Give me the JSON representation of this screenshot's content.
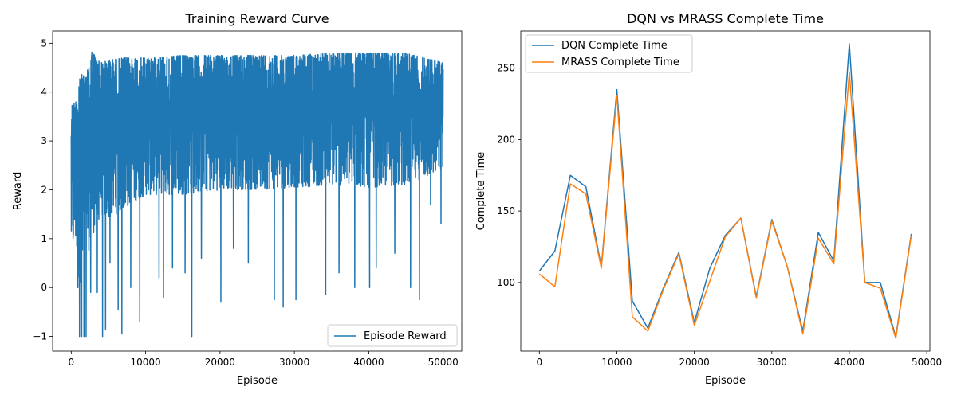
{
  "chart_data": [
    {
      "type": "line",
      "title": "Training Reward Curve",
      "xlabel": "Episode",
      "ylabel": "Reward",
      "xlim": [
        -2500,
        52500
      ],
      "ylim": [
        -1.3,
        5.25
      ],
      "xticks": [
        0,
        10000,
        20000,
        30000,
        40000,
        50000
      ],
      "yticks": [
        -1,
        0,
        1,
        2,
        3,
        4,
        5
      ],
      "legend": "lower-right",
      "series": [
        {
          "name": "Episode Reward",
          "color": "#1f77b4",
          "description": "dense noisy per-episode reward, 0-50000 episodes",
          "x_range": [
            0,
            50000
          ],
          "band": [
            {
              "x": 0,
              "low": 0.75,
              "high": 3.75
            },
            {
              "x": 600,
              "low": 0.9,
              "high": 3.8
            },
            {
              "x": 1000,
              "low": 0.0,
              "high": 4.4
            },
            {
              "x": 2000,
              "low": 0.5,
              "high": 4.3
            },
            {
              "x": 2700,
              "low": 1.0,
              "high": 4.85
            },
            {
              "x": 4000,
              "low": 1.5,
              "high": 4.6
            },
            {
              "x": 5000,
              "low": 1.4,
              "high": 4.65
            },
            {
              "x": 7000,
              "low": 1.6,
              "high": 4.7
            },
            {
              "x": 10000,
              "low": 1.9,
              "high": 4.7
            },
            {
              "x": 15000,
              "low": 1.9,
              "high": 4.75
            },
            {
              "x": 20000,
              "low": 2.0,
              "high": 4.75
            },
            {
              "x": 25000,
              "low": 2.0,
              "high": 4.75
            },
            {
              "x": 30000,
              "low": 2.05,
              "high": 4.75
            },
            {
              "x": 35000,
              "low": 2.1,
              "high": 4.8
            },
            {
              "x": 40000,
              "low": 2.05,
              "high": 4.8
            },
            {
              "x": 45000,
              "low": 2.1,
              "high": 4.8
            },
            {
              "x": 50000,
              "low": 2.4,
              "high": 4.6
            }
          ],
          "dips": [
            {
              "x": 900,
              "y": 0.0
            },
            {
              "x": 1100,
              "y": -1.0
            },
            {
              "x": 1400,
              "y": -1.0
            },
            {
              "x": 1700,
              "y": -1.0
            },
            {
              "x": 2000,
              "y": -1.0
            },
            {
              "x": 2600,
              "y": -0.1
            },
            {
              "x": 3500,
              "y": -0.1
            },
            {
              "x": 4200,
              "y": -1.0
            },
            {
              "x": 4600,
              "y": -0.85
            },
            {
              "x": 5200,
              "y": 0.5
            },
            {
              "x": 6300,
              "y": -0.45
            },
            {
              "x": 6800,
              "y": -0.95
            },
            {
              "x": 8000,
              "y": 0.0
            },
            {
              "x": 9200,
              "y": -0.7
            },
            {
              "x": 11800,
              "y": 0.2
            },
            {
              "x": 12400,
              "y": -0.2
            },
            {
              "x": 13600,
              "y": 0.4
            },
            {
              "x": 15300,
              "y": 0.3
            },
            {
              "x": 16200,
              "y": -1.0
            },
            {
              "x": 17500,
              "y": 0.6
            },
            {
              "x": 20100,
              "y": -0.3
            },
            {
              "x": 21800,
              "y": 0.8
            },
            {
              "x": 23800,
              "y": 0.5
            },
            {
              "x": 27300,
              "y": -0.25
            },
            {
              "x": 28500,
              "y": -0.4
            },
            {
              "x": 30200,
              "y": -0.25
            },
            {
              "x": 34200,
              "y": -0.15
            },
            {
              "x": 36000,
              "y": 0.3
            },
            {
              "x": 38100,
              "y": 0.0
            },
            {
              "x": 40100,
              "y": 0.0
            },
            {
              "x": 41000,
              "y": 0.4
            },
            {
              "x": 43500,
              "y": 0.7
            },
            {
              "x": 45600,
              "y": 0.0
            },
            {
              "x": 46800,
              "y": -0.25
            },
            {
              "x": 48300,
              "y": 1.7
            },
            {
              "x": 49700,
              "y": 1.3
            }
          ]
        }
      ]
    },
    {
      "type": "line",
      "title": "DQN vs MRASS Complete Time",
      "xlabel": "Episode",
      "ylabel": "Complete Time",
      "xlim": [
        -2400,
        50400
      ],
      "ylim": [
        52,
        276
      ],
      "xticks": [
        0,
        10000,
        20000,
        30000,
        40000,
        50000
      ],
      "yticks": [
        100,
        150,
        200,
        250
      ],
      "legend": "top-left",
      "x": [
        0,
        2000,
        4000,
        6000,
        8000,
        10000,
        12000,
        14000,
        16000,
        18000,
        20000,
        22000,
        24000,
        26000,
        28000,
        30000,
        32000,
        34000,
        36000,
        38000,
        40000,
        42000,
        44000,
        46000,
        48000
      ],
      "series": [
        {
          "name": "DQN Complete Time",
          "color": "#1f77b4",
          "values": [
            108,
            122,
            175,
            167,
            111,
            235,
            87,
            68,
            96,
            121,
            72,
            110,
            133,
            145,
            90,
            144,
            111,
            66,
            135,
            115,
            267,
            100,
            100,
            62,
            134
          ]
        },
        {
          "name": "MRASS Complete Time",
          "color": "#ff7f0e",
          "values": [
            106,
            97,
            169,
            162,
            110,
            231,
            76,
            66,
            95,
            120,
            70,
            101,
            132,
            145,
            89,
            143,
            111,
            64,
            131,
            113,
            247,
            100,
            96,
            61,
            133
          ]
        }
      ]
    }
  ]
}
